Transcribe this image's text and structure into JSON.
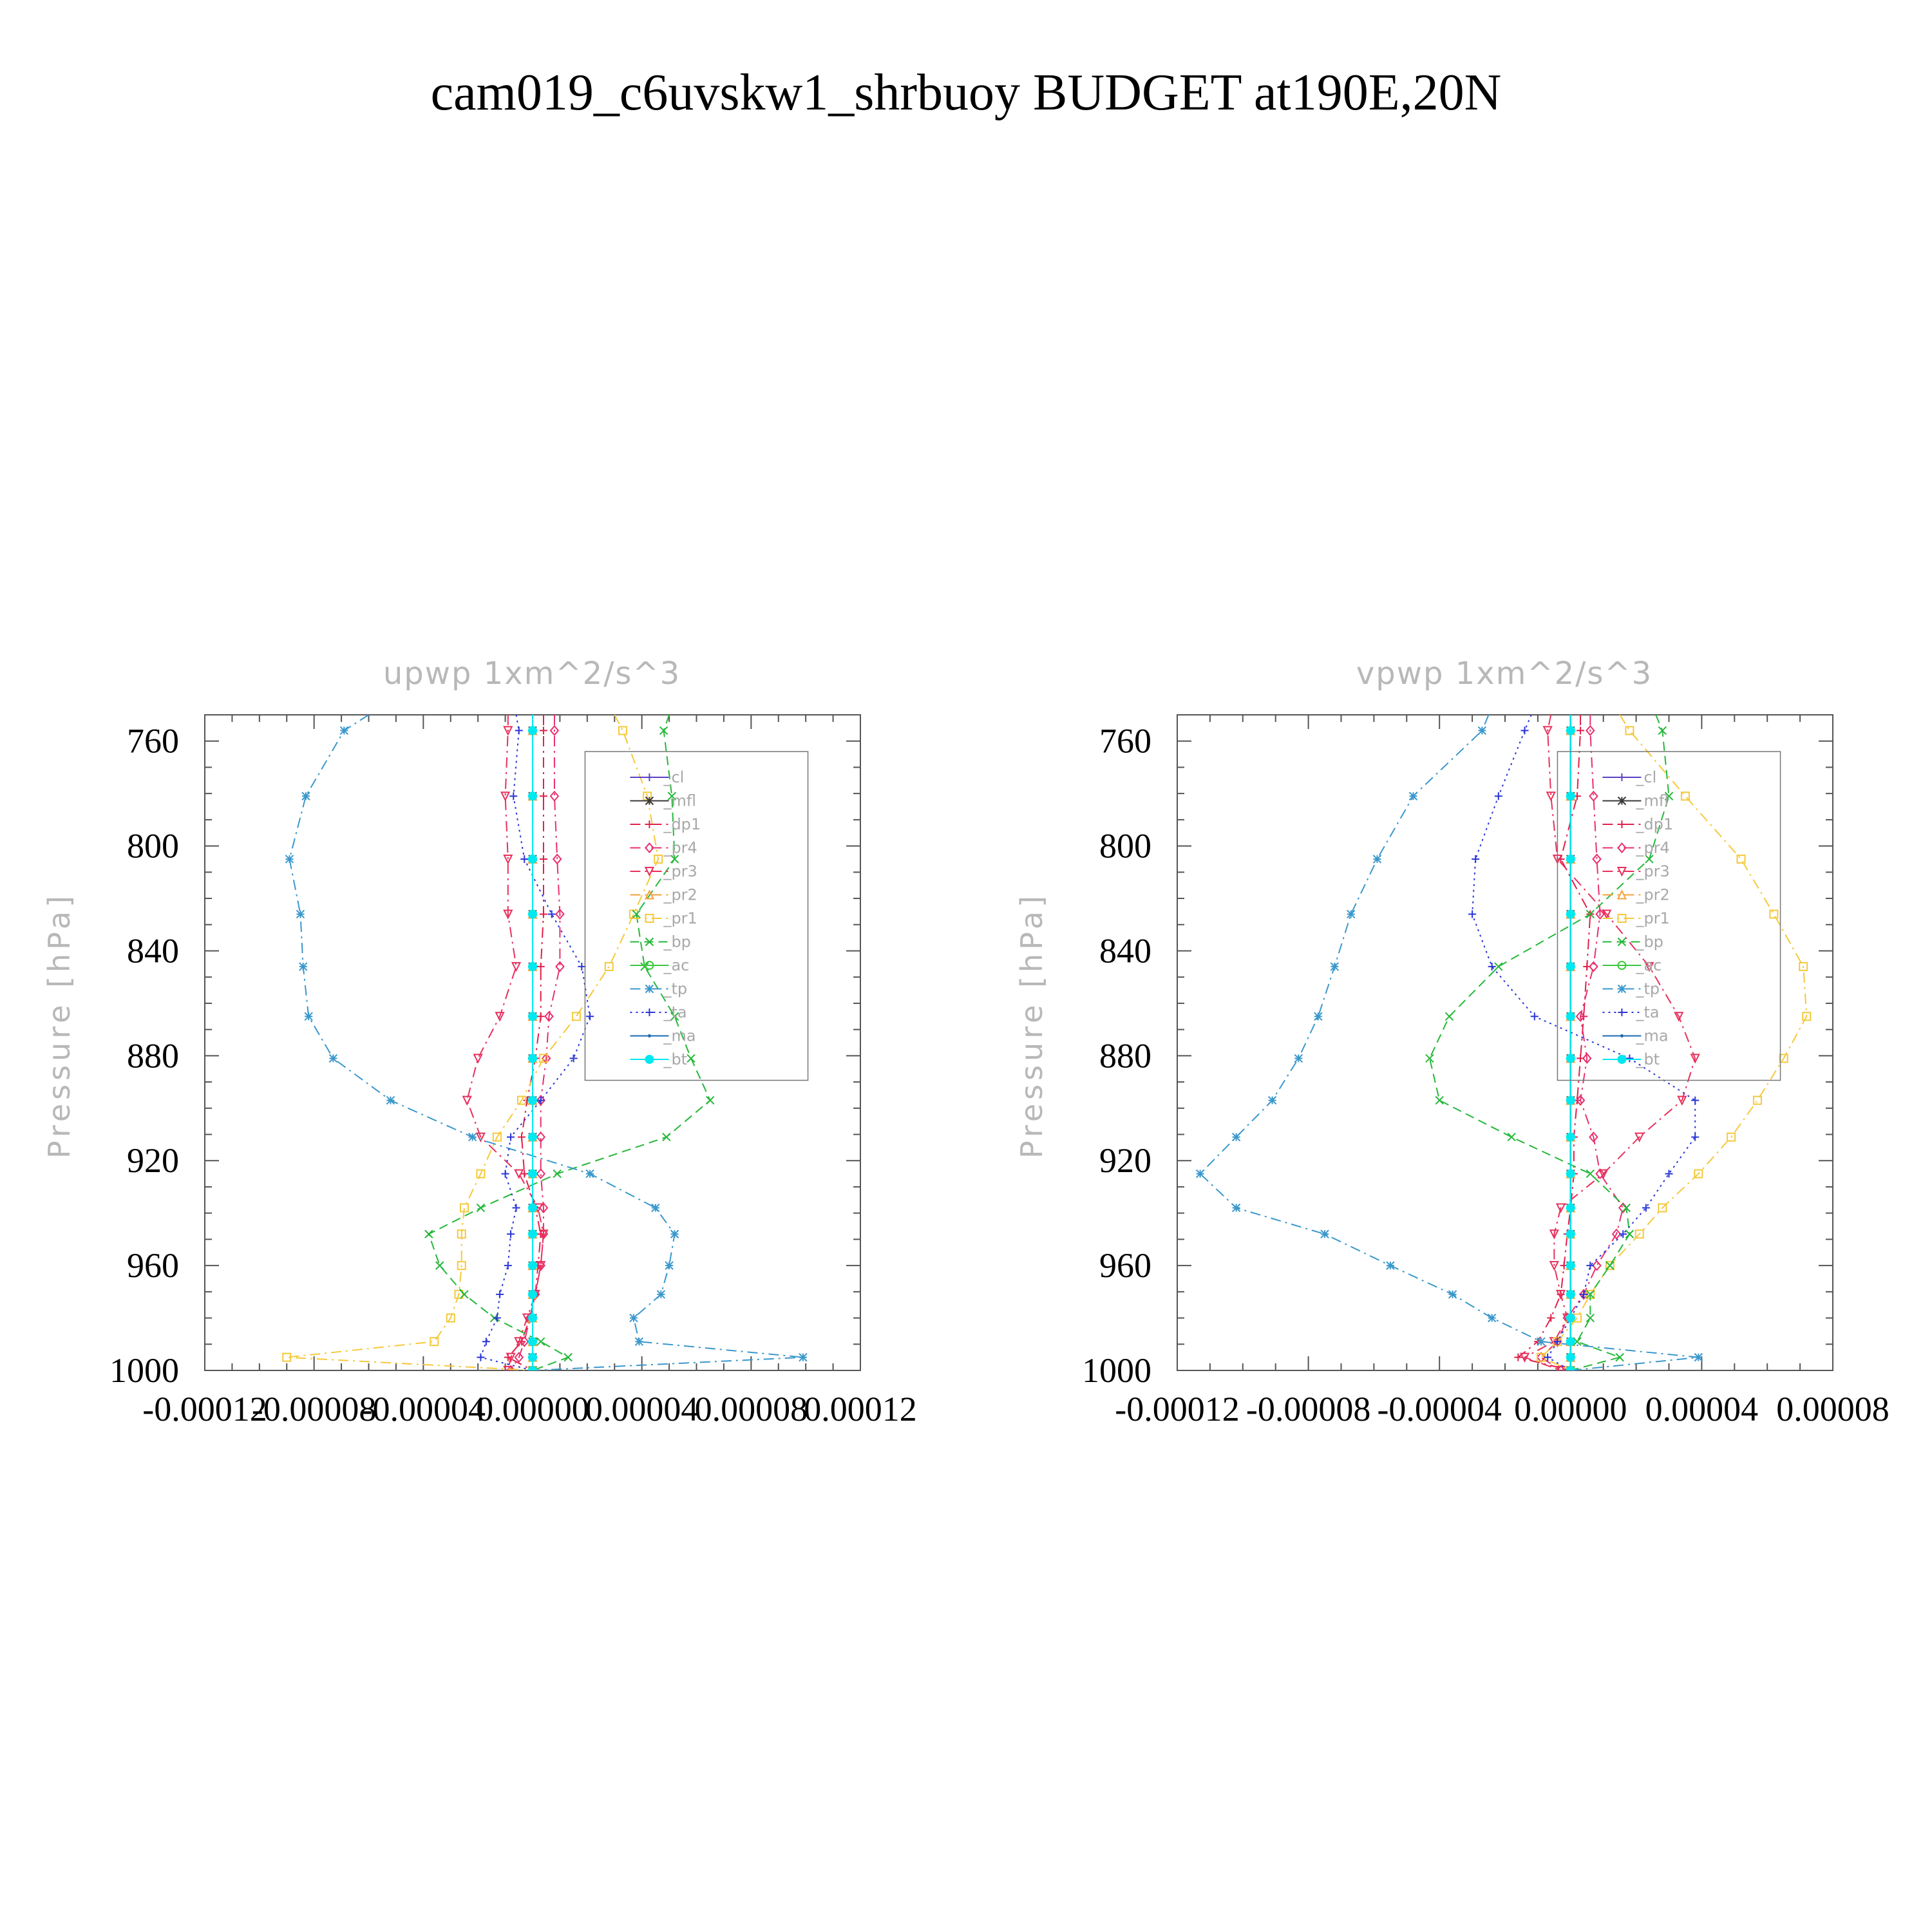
{
  "title": "cam019_c6uvskw1_shrbuoy  BUDGET at190E,20N",
  "chart_data": [
    {
      "type": "line",
      "title": "upwp   1xm^2/s^3",
      "ylabel": "Pressure  [hPa]",
      "xlabel": "",
      "xlim": [
        -0.00012,
        0.00012
      ],
      "ylim": [
        1000,
        750
      ],
      "xticks": [
        -0.00012,
        -8e-05,
        -4e-05,
        0.0,
        4e-05,
        8e-05,
        0.00012
      ],
      "xtick_labels": [
        "-0.00012",
        "-0.00008",
        "-0.00004",
        "0.00000",
        "0.00004",
        "0.00008",
        "0.00012"
      ],
      "yticks": [
        760,
        800,
        840,
        880,
        920,
        960,
        1000
      ],
      "ytick_labels": [
        "760",
        "800",
        "840",
        "880",
        "920",
        "960",
        "1000"
      ],
      "y": [
        750,
        756,
        781,
        805,
        826,
        846,
        865,
        881,
        897,
        911,
        925,
        938,
        948,
        960,
        971,
        980,
        989,
        995,
        1000
      ],
      "series": [
        {
          "name": "_cl",
          "values": [
            0,
            0,
            0,
            0,
            0,
            0,
            0,
            0,
            0,
            0,
            0,
            0,
            0,
            0,
            0,
            0,
            0,
            0,
            0
          ]
        },
        {
          "name": "_mfl",
          "values": [
            0,
            0,
            0,
            0,
            0,
            0,
            0,
            0,
            0,
            0,
            0,
            0,
            0,
            0,
            0,
            0,
            0,
            0,
            0
          ]
        },
        {
          "name": "_dp1",
          "values": [
            4e-06,
            4e-06,
            4e-06,
            4e-06,
            4e-06,
            3e-06,
            3e-06,
            1e-06,
            -2e-06,
            -4e-06,
            -3e-06,
            1e-06,
            3e-06,
            2e-06,
            1e-06,
            -1e-06,
            -4e-06,
            -9e-06,
            0
          ]
        },
        {
          "name": "_pr4",
          "values": [
            8e-06,
            8e-06,
            8e-06,
            9e-06,
            1e-05,
            1e-05,
            6e-06,
            5e-06,
            3e-06,
            3e-06,
            3e-06,
            4e-06,
            4e-06,
            3e-06,
            1e-06,
            -1e-06,
            -3e-06,
            -5e-06,
            -8e-06
          ]
        },
        {
          "name": "_pr3",
          "values": [
            -9e-06,
            -9e-06,
            -1e-05,
            -9e-06,
            -9e-06,
            -6e-06,
            -1.2e-05,
            -2e-05,
            -2.4e-05,
            -1.9e-05,
            -5e-06,
            2e-06,
            4e-06,
            3e-06,
            1e-06,
            -2e-06,
            -5e-06,
            -8e-06,
            -9e-06
          ]
        },
        {
          "name": "_pr2",
          "values": [
            0,
            0,
            0,
            0,
            0,
            0,
            0,
            0,
            0,
            0,
            0,
            0,
            0,
            0,
            0,
            0,
            0,
            0,
            0
          ]
        },
        {
          "name": "_pr1",
          "values": [
            3e-05,
            3.3e-05,
            4.2e-05,
            4.6e-05,
            3.7e-05,
            2.8e-05,
            1.6e-05,
            4e-06,
            -4e-06,
            -1.3e-05,
            -1.9e-05,
            -2.5e-05,
            -2.6e-05,
            -2.6e-05,
            -2.7e-05,
            -3e-05,
            -3.6e-05,
            -9e-05,
            0
          ]
        },
        {
          "name": "_bp",
          "values": [
            5e-05,
            4.8e-05,
            5.1e-05,
            5.2e-05,
            3.8e-05,
            4.1e-05,
            5.2e-05,
            5.8e-05,
            6.5e-05,
            4.9e-05,
            9e-06,
            -1.9e-05,
            -3.8e-05,
            -3.4e-05,
            -2.5e-05,
            -1.4e-05,
            3e-06,
            1.3e-05,
            0
          ]
        },
        {
          "name": "_ac",
          "values": [
            0,
            0,
            0,
            0,
            0,
            0,
            0,
            0,
            0,
            0,
            0,
            0,
            0,
            0,
            0,
            0,
            0,
            0,
            0
          ]
        },
        {
          "name": "_tp",
          "values": [
            -6e-05,
            -6.9e-05,
            -8.3e-05,
            -8.9e-05,
            -8.5e-05,
            -8.4e-05,
            -8.2e-05,
            -7.3e-05,
            -5.2e-05,
            -2.2e-05,
            2.1e-05,
            4.5e-05,
            5.2e-05,
            5e-05,
            4.7e-05,
            3.7e-05,
            3.9e-05,
            9.9e-05,
            0
          ]
        },
        {
          "name": "_ta",
          "values": [
            -6e-06,
            -5e-06,
            -7e-06,
            -3e-06,
            7e-06,
            1.8e-05,
            2.1e-05,
            1.5e-05,
            3e-06,
            -8e-06,
            -1e-05,
            -6e-06,
            -8e-06,
            -9e-06,
            -1.2e-05,
            -1.3e-05,
            -1.7e-05,
            -1.9e-05,
            0
          ]
        },
        {
          "name": "_ma",
          "values": [
            0,
            0,
            0,
            0,
            0,
            0,
            0,
            0,
            0,
            0,
            0,
            0,
            0,
            0,
            0,
            0,
            0,
            0,
            0
          ]
        },
        {
          "name": "_bt",
          "values": [
            0,
            0,
            0,
            0,
            0,
            0,
            0,
            0,
            0,
            0,
            0,
            0,
            0,
            0,
            0,
            0,
            0,
            0,
            0
          ]
        }
      ]
    },
    {
      "type": "line",
      "title": "vpwp   1xm^2/s^3",
      "ylabel": "Pressure  [hPa]",
      "xlabel": "",
      "xlim": [
        -0.00012,
        8e-05
      ],
      "ylim": [
        1000,
        750
      ],
      "xticks": [
        -0.00012,
        -8e-05,
        -4e-05,
        0.0,
        4e-05,
        8e-05
      ],
      "xtick_labels": [
        "-0.00012",
        "-0.00008",
        "-0.00004",
        "0.00000",
        "0.00004",
        "0.00008"
      ],
      "yticks": [
        760,
        800,
        840,
        880,
        920,
        960,
        1000
      ],
      "ytick_labels": [
        "760",
        "800",
        "840",
        "880",
        "920",
        "960",
        "1000"
      ],
      "y": [
        750,
        756,
        781,
        805,
        826,
        846,
        865,
        881,
        897,
        911,
        925,
        938,
        948,
        960,
        971,
        980,
        989,
        995,
        1000
      ],
      "series": [
        {
          "name": "_cl",
          "values": [
            0,
            0,
            0,
            0,
            0,
            0,
            0,
            0,
            0,
            0,
            0,
            0,
            0,
            0,
            0,
            0,
            0,
            0,
            0
          ]
        },
        {
          "name": "_mfl",
          "values": [
            0,
            0,
            0,
            0,
            0,
            0,
            0,
            0,
            0,
            0,
            0,
            0,
            0,
            0,
            0,
            0,
            0,
            0,
            0
          ]
        },
        {
          "name": "_dp1",
          "values": [
            3e-06,
            3e-06,
            2e-06,
            -3e-06,
            6e-06,
            5e-06,
            4e-06,
            3e-06,
            2e-06,
            1e-06,
            1e-06,
            0,
            -1e-06,
            -2e-06,
            -3e-06,
            -6e-06,
            -1e-05,
            -1.6e-05,
            0
          ]
        },
        {
          "name": "_pr4",
          "values": [
            6e-06,
            6e-06,
            7e-06,
            8e-06,
            9e-06,
            7e-06,
            3e-06,
            5e-06,
            3e-06,
            7e-06,
            9e-06,
            1.6e-05,
            1.4e-05,
            8e-06,
            4e-06,
            -1e-06,
            -4e-06,
            -9e-06,
            -3e-06
          ]
        },
        {
          "name": "_pr3",
          "values": [
            -6e-06,
            -7e-06,
            -6e-06,
            -4e-06,
            1.1e-05,
            2.4e-05,
            3.3e-05,
            3.8e-05,
            3.4e-05,
            2.1e-05,
            1e-05,
            -3e-06,
            -5e-06,
            -5e-06,
            -3e-06,
            -1e-06,
            -5e-06,
            -1.4e-05,
            -3e-06
          ]
        },
        {
          "name": "_pr2",
          "values": [
            0,
            0,
            0,
            0,
            0,
            0,
            0,
            0,
            0,
            0,
            0,
            0,
            0,
            0,
            0,
            0,
            0,
            0,
            0
          ]
        },
        {
          "name": "_pr1",
          "values": [
            1.5e-05,
            1.8e-05,
            3.5e-05,
            5.2e-05,
            6.2e-05,
            7.1e-05,
            7.2e-05,
            6.5e-05,
            5.7e-05,
            4.9e-05,
            3.9e-05,
            2.8e-05,
            2.1e-05,
            1.2e-05,
            6e-06,
            2e-06,
            -4e-06,
            -9e-06,
            0
          ]
        },
        {
          "name": "_bp",
          "values": [
            2.6e-05,
            2.8e-05,
            3e-05,
            2.4e-05,
            6e-06,
            -2.2e-05,
            -3.7e-05,
            -4.3e-05,
            -4e-05,
            -1.8e-05,
            6e-06,
            1.7e-05,
            1.8e-05,
            1.2e-05,
            6e-06,
            6e-06,
            2e-06,
            1.5e-05,
            0
          ]
        },
        {
          "name": "_ac",
          "values": [
            0,
            0,
            0,
            0,
            0,
            0,
            0,
            0,
            0,
            0,
            0,
            0,
            0,
            0,
            0,
            0,
            0,
            0,
            0
          ]
        },
        {
          "name": "_tp",
          "values": [
            -2.5e-05,
            -2.7e-05,
            -4.8e-05,
            -5.9e-05,
            -6.7e-05,
            -7.2e-05,
            -7.7e-05,
            -8.3e-05,
            -9.1e-05,
            -0.000102,
            -0.000113,
            -0.000102,
            -7.5e-05,
            -5.5e-05,
            -3.6e-05,
            -2.4e-05,
            -9e-06,
            3.9e-05,
            0
          ]
        },
        {
          "name": "_ta",
          "values": [
            -1.2e-05,
            -1.4e-05,
            -2.2e-05,
            -2.9e-05,
            -3e-05,
            -2.4e-05,
            -1.1e-05,
            1.8e-05,
            3.8e-05,
            3.8e-05,
            3e-05,
            2.3e-05,
            1.6e-05,
            6e-06,
            4e-06,
            0,
            -4e-06,
            -7e-06,
            0
          ]
        },
        {
          "name": "_ma",
          "values": [
            0,
            0,
            0,
            0,
            0,
            0,
            0,
            0,
            0,
            0,
            0,
            0,
            0,
            0,
            0,
            0,
            0,
            0,
            0
          ]
        },
        {
          "name": "_bt",
          "values": [
            0,
            0,
            0,
            0,
            0,
            0,
            0,
            0,
            0,
            0,
            0,
            0,
            0,
            0,
            0,
            0,
            0,
            0,
            0
          ]
        }
      ]
    }
  ],
  "series_style": {
    "_cl": {
      "color": "#5b3fc4",
      "marker": "plus",
      "dash": "solid"
    },
    "_mfl": {
      "color": "#3a3a3a",
      "marker": "star",
      "dash": "solid"
    },
    "_dp1": {
      "color": "#e0204a",
      "marker": "plus",
      "dash": "dashdot"
    },
    "_pr4": {
      "color": "#e8306e",
      "marker": "diamond",
      "dash": "dashdot"
    },
    "_pr3": {
      "color": "#e8305c",
      "marker": "triangle-down",
      "dash": "dashdot"
    },
    "_pr2": {
      "color": "#f5a23a",
      "marker": "triangle-up",
      "dash": "dashdot"
    },
    "_pr1": {
      "color": "#f5c93a",
      "marker": "square",
      "dash": "dashdot"
    },
    "_bp": {
      "color": "#25b83a",
      "marker": "cross",
      "dash": "dashed"
    },
    "_ac": {
      "color": "#3ec83e",
      "marker": "circle",
      "dash": "solid"
    },
    "_tp": {
      "color": "#3a98cc",
      "marker": "star",
      "dash": "dashdot"
    },
    "_ta": {
      "color": "#2a36d8",
      "marker": "plus",
      "dash": "dotted"
    },
    "_ma": {
      "color": "#1a6ab0",
      "marker": "dot",
      "dash": "solid"
    },
    "_bt": {
      "color": "#00e8f0",
      "marker": "filled-circle",
      "dash": "solid"
    }
  }
}
